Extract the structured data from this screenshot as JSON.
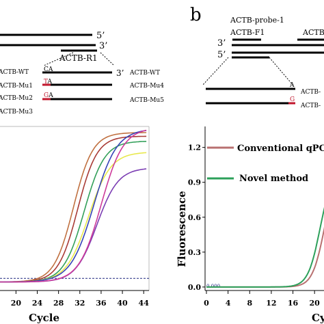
{
  "panel_b_label": "b",
  "left_diagram": {
    "strand_top_end": "5’",
    "strand_bottom_end": "3’",
    "primer": "ACTB-R1",
    "end_label": "3’",
    "rows": [
      {
        "left": "ACTB-WT",
        "mark": "CA",
        "mark_color": "#000000",
        "right": "ACTB-WT"
      },
      {
        "left": "ACTB-Mu1",
        "mark": "TA",
        "mark_color": "#c0152b",
        "right": "ACTB-Mu4"
      },
      {
        "left": "ACTB-Mu2",
        "mark": "GA",
        "mark_color": "#c0152b",
        "right": "ACTB-Mu5"
      },
      {
        "left": "ACTB-Mu3",
        "mark": "",
        "mark_color": "#000000",
        "right": ""
      }
    ]
  },
  "right_diagram": {
    "probe": "ACTB-probe-1",
    "primer_f1": "ACTB-F1",
    "primer_cut": "ACTB",
    "strand_top_end": "3’",
    "strand_bottom_end": "5’",
    "row_a_mark": "A",
    "row_a_label": "ACTB-",
    "row_g_mark": "G",
    "row_g_label": "ACTB-"
  },
  "colors": {
    "mutant_red": "#c0152b",
    "baseline_blue": "#1a237e"
  },
  "chart_data": [
    {
      "type": "line",
      "xlabel": "Cycle",
      "ylabel": "",
      "xlim": [
        17,
        45
      ],
      "ylim": [
        -0.05,
        1.3
      ],
      "x_ticks": [
        20,
        24,
        28,
        32,
        36,
        40,
        44
      ],
      "x_tick_labels": [
        "20",
        "24",
        "28",
        "32",
        "36",
        "40",
        "44"
      ],
      "grid": false,
      "threshold": 0.05,
      "series": [
        {
          "color": "#c07040",
          "mid": 30.8,
          "k": 0.55,
          "top": 1.23
        },
        {
          "color": "#a83a35",
          "mid": 31.6,
          "k": 0.55,
          "top": 1.2
        },
        {
          "color": "#33a05a",
          "mid": 32.8,
          "k": 0.52,
          "top": 1.16
        },
        {
          "color": "#e8e84a",
          "mid": 33.6,
          "k": 0.48,
          "top": 1.07
        },
        {
          "color": "#7b3db3",
          "mid": 35.2,
          "k": 0.5,
          "top": 0.94
        },
        {
          "color": "#3543b6",
          "mid": 34.6,
          "k": 0.46,
          "top": 1.26
        },
        {
          "color": "#cd3a9a",
          "mid": 36.0,
          "k": 0.48,
          "top": 1.27
        }
      ]
    },
    {
      "type": "line",
      "xlabel": "Cy",
      "ylabel": "Fluorescence",
      "xlim": [
        0,
        22
      ],
      "ylim": [
        -0.03,
        1.38
      ],
      "x_ticks": [
        0,
        4,
        8,
        12,
        16,
        20
      ],
      "x_tick_labels": [
        "0",
        "4",
        "8",
        "12",
        "16",
        "20"
      ],
      "y_ticks": [
        0.0,
        0.3,
        0.6,
        0.9,
        1.2
      ],
      "y_tick_labels": [
        "0.0",
        "0.3",
        "0.6",
        "0.9",
        "1.2"
      ],
      "baseline_label": "0.000",
      "legend_location": "top-right",
      "series": [
        {
          "name": "Conventional qPC",
          "color": "#b87070",
          "mid": 21.8,
          "k": 0.9,
          "top": 1.0
        },
        {
          "name": "Novel method",
          "color": "#2ca05a",
          "mid": 21.0,
          "k": 0.9,
          "top": 1.0
        }
      ]
    }
  ]
}
